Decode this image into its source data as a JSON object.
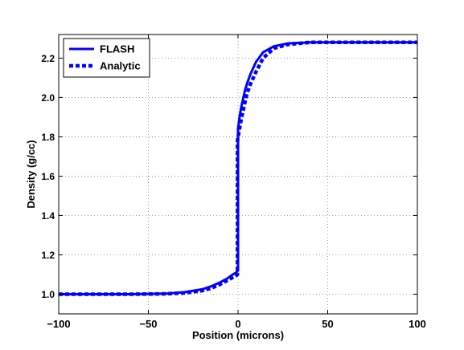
{
  "chart_data": {
    "type": "line",
    "title": "",
    "xlabel": "Position (microns)",
    "ylabel": "Density (g/cc)",
    "xlim": [
      -100,
      100
    ],
    "ylim": [
      0.9,
      2.32
    ],
    "xticks": [
      -100,
      -50,
      0,
      50,
      100
    ],
    "xtick_labels": [
      "−100",
      "−50",
      "0",
      "50",
      "100"
    ],
    "yticks": [
      1.0,
      1.2,
      1.4,
      1.6,
      1.8,
      2.0,
      2.2
    ],
    "ytick_labels": [
      "1.0",
      "1.2",
      "1.4",
      "1.6",
      "1.8",
      "2.0",
      "2.2"
    ],
    "grid": true,
    "legend_position": "top-left",
    "series": [
      {
        "name": "FLASH",
        "style": "solid",
        "color": "#0000ff",
        "x": [
          -100,
          -60,
          -40,
          -30,
          -20,
          -15,
          -10,
          -6,
          -3,
          -1,
          -0.5,
          0,
          0,
          1,
          2,
          3,
          4,
          5,
          7,
          10,
          14,
          20,
          28,
          40,
          60,
          100
        ],
        "y": [
          1.0,
          1.0,
          1.003,
          1.01,
          1.025,
          1.04,
          1.06,
          1.08,
          1.1,
          1.11,
          1.12,
          1.12,
          1.84,
          1.91,
          1.96,
          2.0,
          2.04,
          2.07,
          2.12,
          2.18,
          2.23,
          2.26,
          2.275,
          2.28,
          2.28,
          2.28
        ]
      },
      {
        "name": "Analytic",
        "style": "dashed",
        "color": "#0000ff",
        "x": [
          -100,
          -60,
          -40,
          -30,
          -20,
          -15,
          -10,
          -6,
          -3,
          -1,
          -0.3,
          -0.3,
          1,
          2,
          3,
          4,
          5,
          7,
          10,
          14,
          20,
          28,
          40,
          60,
          100
        ],
        "y": [
          1.0,
          1.0,
          1.002,
          1.006,
          1.018,
          1.03,
          1.05,
          1.07,
          1.085,
          1.095,
          1.1,
          1.78,
          1.85,
          1.9,
          1.94,
          1.98,
          2.02,
          2.07,
          2.13,
          2.2,
          2.25,
          2.27,
          2.28,
          2.28,
          2.28
        ]
      }
    ]
  }
}
